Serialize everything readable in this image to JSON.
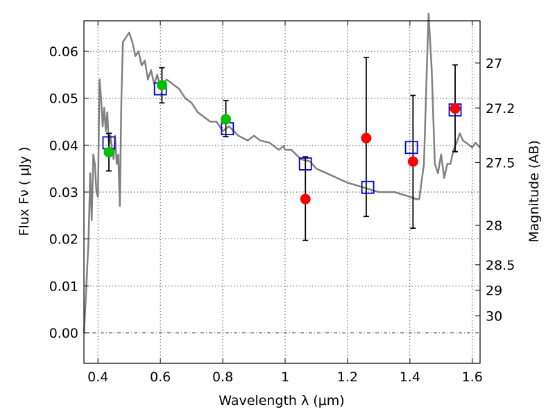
{
  "chart_data": {
    "type": "scatter",
    "xlabel": "Wavelength  λ (μm)",
    "ylabel": "Flux  Fν  ( μJy )",
    "y2label": "Magnitude (AB)",
    "xlim": [
      0.355,
      1.625
    ],
    "ylim": [
      -0.0065,
      0.0665
    ],
    "x_ticks": [
      0.4,
      0.6,
      0.8,
      1.0,
      1.2,
      1.4,
      1.6
    ],
    "x_tick_labels": [
      "0.4",
      "0.6",
      "0.8",
      "1",
      "1.2",
      "1.4",
      "1.6"
    ],
    "y_ticks": [
      0.0,
      0.01,
      0.02,
      0.03,
      0.04,
      0.05,
      0.06
    ],
    "y_tick_labels": [
      "0.00",
      "0.01",
      "0.02",
      "0.03",
      "0.04",
      "0.05",
      "0.06"
    ],
    "y2_ticks": [
      {
        "label": "27",
        "flux": 0.0575
      },
      {
        "label": "27.2",
        "flux": 0.0479
      },
      {
        "label": "27.5",
        "flux": 0.0363
      },
      {
        "label": "28",
        "flux": 0.0229
      },
      {
        "label": "28.5",
        "flux": 0.0145
      },
      {
        "label": "29",
        "flux": 0.0091
      },
      {
        "label": "30",
        "flux": 0.0036
      }
    ],
    "grid": true,
    "colors": {
      "model": "#808080",
      "detection": "#00c000",
      "measured": "#ff0000",
      "synthetic": "#0000cc",
      "errorbar": "#000000"
    },
    "series": [
      {
        "kind": "line",
        "x": [
          0.355,
          0.36,
          0.37,
          0.375,
          0.38,
          0.385,
          0.39,
          0.395,
          0.4,
          0.405,
          0.41,
          0.415,
          0.42,
          0.425,
          0.43,
          0.435,
          0.44,
          0.445,
          0.45,
          0.455,
          0.46,
          0.465,
          0.47,
          0.475,
          0.48,
          0.49,
          0.5,
          0.51,
          0.52,
          0.53,
          0.54,
          0.55,
          0.56,
          0.57,
          0.58,
          0.59,
          0.6,
          0.62,
          0.64,
          0.66,
          0.68,
          0.7,
          0.72,
          0.74,
          0.76,
          0.78,
          0.8,
          0.82,
          0.85,
          0.88,
          0.9,
          0.92,
          0.95,
          0.98,
          0.995,
          1.0,
          1.02,
          1.05,
          1.08,
          1.1,
          1.15,
          1.2,
          1.25,
          1.3,
          1.35,
          1.4,
          1.42,
          1.43,
          1.445,
          1.455,
          1.46,
          1.47,
          1.48,
          1.49,
          1.5,
          1.51,
          1.52,
          1.53,
          1.54,
          1.55,
          1.56,
          1.57,
          1.58,
          1.6,
          1.61,
          1.625
        ],
        "y": [
          0.0,
          0.006,
          0.02,
          0.034,
          0.024,
          0.038,
          0.036,
          0.03,
          0.029,
          0.054,
          0.05,
          0.044,
          0.048,
          0.043,
          0.047,
          0.04,
          0.042,
          0.039,
          0.037,
          0.042,
          0.036,
          0.038,
          0.027,
          0.05,
          0.062,
          0.063,
          0.064,
          0.062,
          0.059,
          0.06,
          0.057,
          0.058,
          0.054,
          0.056,
          0.053,
          0.055,
          0.052,
          0.054,
          0.053,
          0.052,
          0.05,
          0.049,
          0.047,
          0.046,
          0.045,
          0.045,
          0.043,
          0.044,
          0.042,
          0.041,
          0.042,
          0.041,
          0.0405,
          0.039,
          0.0398,
          0.039,
          0.039,
          0.037,
          0.0365,
          0.035,
          0.0335,
          0.032,
          0.031,
          0.03,
          0.03,
          0.029,
          0.0285,
          0.0285,
          0.036,
          0.058,
          0.068,
          0.056,
          0.036,
          0.034,
          0.038,
          0.033,
          0.036,
          0.036,
          0.039,
          0.0405,
          0.0425,
          0.041,
          0.0405,
          0.0395,
          0.0405,
          0.0395
        ]
      },
      {
        "kind": "squares",
        "x": [
          0.435,
          0.6,
          0.815,
          1.065,
          1.265,
          1.405,
          1.545
        ],
        "y": [
          0.0405,
          0.052,
          0.0435,
          0.036,
          0.031,
          0.0395,
          0.0475
        ]
      },
      {
        "kind": "circles",
        "x": [
          0.435,
          0.605,
          0.81
        ],
        "y": [
          0.0385,
          0.0528,
          0.0455
        ]
      },
      {
        "kind": "circles",
        "x": [
          1.065,
          1.26,
          1.41,
          1.545
        ],
        "y": [
          0.0285,
          0.0415,
          0.0365,
          0.0478
        ]
      },
      {
        "kind": "errorbars",
        "x": [
          0.435,
          0.605,
          0.81,
          1.065,
          1.26,
          1.41,
          1.545
        ],
        "ylow": [
          0.0345,
          0.049,
          0.0418,
          0.0197,
          0.0248,
          0.0223,
          0.0386
        ],
        "yhigh": [
          0.0425,
          0.0565,
          0.0495,
          0.0375,
          0.0587,
          0.0506,
          0.0571
        ]
      }
    ]
  }
}
